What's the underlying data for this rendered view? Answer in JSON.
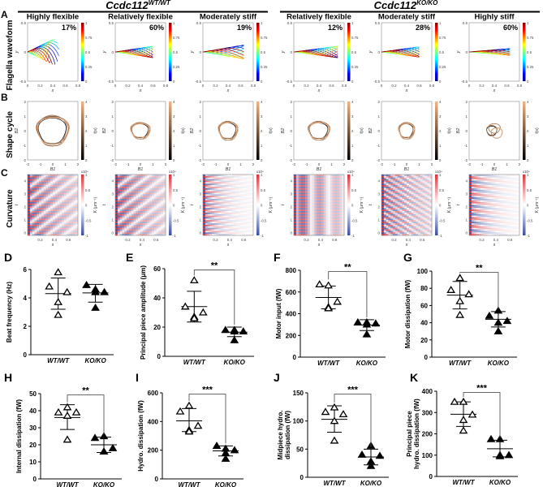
{
  "header": {
    "groups": [
      {
        "gene": "Ccdc112",
        "genotype": "WT/WT"
      },
      {
        "gene": "Ccdc112",
        "genotype": "KO/KO"
      }
    ]
  },
  "rows": [
    {
      "letter": "A",
      "label": "Flagella waveform"
    },
    {
      "letter": "B",
      "label": "Shape cycle"
    },
    {
      "letter": "C",
      "label": "Curvature"
    }
  ],
  "columns": [
    {
      "title": "Highly flexible",
      "percent": "17%"
    },
    {
      "title": "Relatively flexible",
      "percent": "60%"
    },
    {
      "title": "Moderately stiff",
      "percent": "19%"
    },
    {
      "title": "Relatively flexible",
      "percent": "12%"
    },
    {
      "title": "Moderately stiff",
      "percent": "28%"
    },
    {
      "title": "Highly stiff",
      "percent": "60%"
    }
  ],
  "row_axes": {
    "waveform": {
      "xlabel": "x",
      "ylabel": "y",
      "xticks": [
        "0",
        "0.2",
        "0.4",
        "0.6",
        "0.8"
      ],
      "yticks": [
        "0.5",
        "0",
        "-0.5"
      ],
      "cbar_ticks": [
        "1",
        "0.75",
        "0.5",
        "0.25",
        "0"
      ],
      "colormap": "jet"
    },
    "shape": {
      "xlabel": "B1",
      "ylabel": "B2",
      "xticks": [
        "-2",
        "-1",
        "0",
        "1",
        "2"
      ],
      "yticks": [
        "2",
        "1",
        "0",
        "-1",
        "-2"
      ],
      "cbar_label": "t(s)",
      "cbar_ticks": [
        "4",
        "3",
        "2",
        "1",
        "0"
      ],
      "cbar_colors": [
        "#000000",
        "#f4b382"
      ]
    },
    "curvature": {
      "xlabel": "s",
      "ylabel": "t",
      "xticks": [
        "0.2",
        "0.4",
        "0.6"
      ],
      "yticks": [
        "4",
        "3",
        "2",
        "1",
        "0"
      ],
      "cbar_label": "K (μm⁻¹)",
      "cbar_exp": "x10⁴",
      "cbar_ticks": [
        "1",
        "0.5",
        "0",
        "-0.5",
        "-1"
      ],
      "cbar_colors": [
        "#3a4fa0",
        "#ffffff",
        "#d8343a"
      ]
    }
  },
  "chart_data": [
    {
      "type": "scatter",
      "letter": "D",
      "ylabel": "Beat frequency (Hz)",
      "ylim": [
        0,
        6
      ],
      "yticks": [
        0,
        2,
        4,
        6
      ],
      "categories": [
        "WT/WT",
        "KO/KO"
      ],
      "series": [
        {
          "name": "WT/WT",
          "marker": "open-triangle",
          "values": [
            5.8,
            4.8,
            4.4,
            3.7,
            2.8
          ],
          "mean": 4.3,
          "sd_range": [
            3.2,
            5.4
          ]
        },
        {
          "name": "KO/KO",
          "marker": "filled-triangle",
          "values": [
            4.6,
            4.9,
            4.4,
            4.4,
            3.3
          ],
          "mean": 4.35,
          "sd_range": [
            3.7,
            4.95
          ]
        }
      ],
      "significance": ""
    },
    {
      "type": "scatter",
      "letter": "E",
      "ylabel": "Principal piece amplitude (μm)",
      "ylim": [
        0,
        60
      ],
      "yticks": [
        0,
        20,
        40,
        60
      ],
      "categories": [
        "WT/WT",
        "KO/KO"
      ],
      "series": [
        {
          "name": "WT/WT",
          "marker": "open-triangle",
          "values": [
            52,
            34,
            30,
            27,
            26
          ],
          "mean": 34,
          "sd_range": [
            23.5,
            44.5
          ]
        },
        {
          "name": "KO/KO",
          "marker": "filled-triangle",
          "values": [
            18,
            18,
            17,
            17,
            11
          ],
          "mean": 16.5,
          "sd_range": [
            13.5,
            20
          ]
        }
      ],
      "significance": "**"
    },
    {
      "type": "scatter",
      "letter": "F",
      "ylabel": "Motor input (fW)",
      "ylim": [
        0,
        800
      ],
      "yticks": [
        0,
        200,
        400,
        600,
        800
      ],
      "categories": [
        "WT/WT",
        "KO/KO"
      ],
      "series": [
        {
          "name": "WT/WT",
          "marker": "open-triangle",
          "values": [
            660,
            670,
            510,
            460,
            450
          ],
          "mean": 550,
          "sd_range": [
            445,
            655
          ]
        },
        {
          "name": "KO/KO",
          "marker": "filled-triangle",
          "values": [
            320,
            320,
            310,
            300,
            210
          ],
          "mean": 295,
          "sd_range": [
            245,
            345
          ]
        }
      ],
      "significance": "**"
    },
    {
      "type": "scatter",
      "letter": "G",
      "ylabel": "Motor dissipation (fW)",
      "ylim": [
        0,
        100
      ],
      "yticks": [
        0,
        20,
        40,
        60,
        80,
        100
      ],
      "categories": [
        "WT/WT",
        "KO/KO"
      ],
      "series": [
        {
          "name": "WT/WT",
          "marker": "open-triangle",
          "values": [
            92,
            78,
            73,
            65,
            49
          ],
          "mean": 72,
          "sd_range": [
            56,
            88
          ]
        },
        {
          "name": "KO/KO",
          "marker": "filled-triangle",
          "values": [
            54,
            48,
            42,
            40,
            30
          ],
          "mean": 44,
          "sd_range": [
            35,
            53
          ]
        }
      ],
      "significance": "**"
    },
    {
      "type": "scatter",
      "letter": "H",
      "ylabel": "Internal dissipation (fW)",
      "ylim": [
        0,
        50
      ],
      "yticks": [
        0,
        10,
        20,
        30,
        40,
        50
      ],
      "categories": [
        "WT/WT",
        "KO/KO"
      ],
      "series": [
        {
          "name": "WT/WT",
          "marker": "open-triangle",
          "values": [
            42,
            39,
            39,
            37,
            23
          ],
          "mean": 36,
          "sd_range": [
            29,
            43.5
          ]
        },
        {
          "name": "KO/KO",
          "marker": "filled-triangle",
          "values": [
            25,
            24,
            18,
            16,
            16
          ],
          "mean": 20,
          "sd_range": [
            15.5,
            24.5
          ]
        }
      ],
      "significance": "**"
    },
    {
      "type": "scatter",
      "letter": "I",
      "ylabel": "Hydro. dissipation (fW)",
      "ylim": [
        0,
        600
      ],
      "yticks": [
        0,
        200,
        400,
        600
      ],
      "categories": [
        "WT/WT",
        "KO/KO"
      ],
      "series": [
        {
          "name": "WT/WT",
          "marker": "open-triangle",
          "values": [
            510,
            470,
            370,
            340,
            330
          ],
          "mean": 405,
          "sd_range": [
            330,
            490
          ]
        },
        {
          "name": "KO/KO",
          "marker": "filled-triangle",
          "values": [
            210,
            230,
            200,
            180,
            140
          ],
          "mean": 195,
          "sd_range": [
            160,
            230
          ]
        }
      ],
      "significance": "***"
    },
    {
      "type": "scatter",
      "letter": "J",
      "ylabel": "Midpiece hydro.",
      "ylabel2": "dissipation (fW)",
      "ylim": [
        0,
        150
      ],
      "yticks": [
        0,
        50,
        100,
        150
      ],
      "categories": [
        "WT/WT",
        "KO/KO"
      ],
      "series": [
        {
          "name": "WT/WT",
          "marker": "open-triangle",
          "values": [
            124,
            116,
            112,
            100,
            65
          ],
          "mean": 103,
          "sd_range": [
            80,
            127
          ]
        },
        {
          "name": "KO/KO",
          "marker": "filled-triangle",
          "values": [
            56,
            40,
            38,
            28,
            20
          ],
          "mean": 36,
          "sd_range": [
            22,
            50
          ]
        }
      ],
      "significance": "***"
    },
    {
      "type": "scatter",
      "letter": "K",
      "ylabel": "Principal piece",
      "ylabel2": "hydro. dissipation (fW)",
      "ylim": [
        0,
        400
      ],
      "yticks": [
        0,
        100,
        200,
        300,
        400
      ],
      "categories": [
        "WT/WT",
        "KO/KO"
      ],
      "series": [
        {
          "name": "WT/WT",
          "marker": "open-triangle",
          "values": [
            350,
            350,
            290,
            265,
            215
          ],
          "mean": 292,
          "sd_range": [
            235,
            350
          ]
        },
        {
          "name": "KO/KO",
          "marker": "filled-triangle",
          "values": [
            175,
            175,
            100,
            100,
            95
          ],
          "mean": 130,
          "sd_range": [
            92,
            170
          ]
        }
      ],
      "significance": "***"
    }
  ]
}
